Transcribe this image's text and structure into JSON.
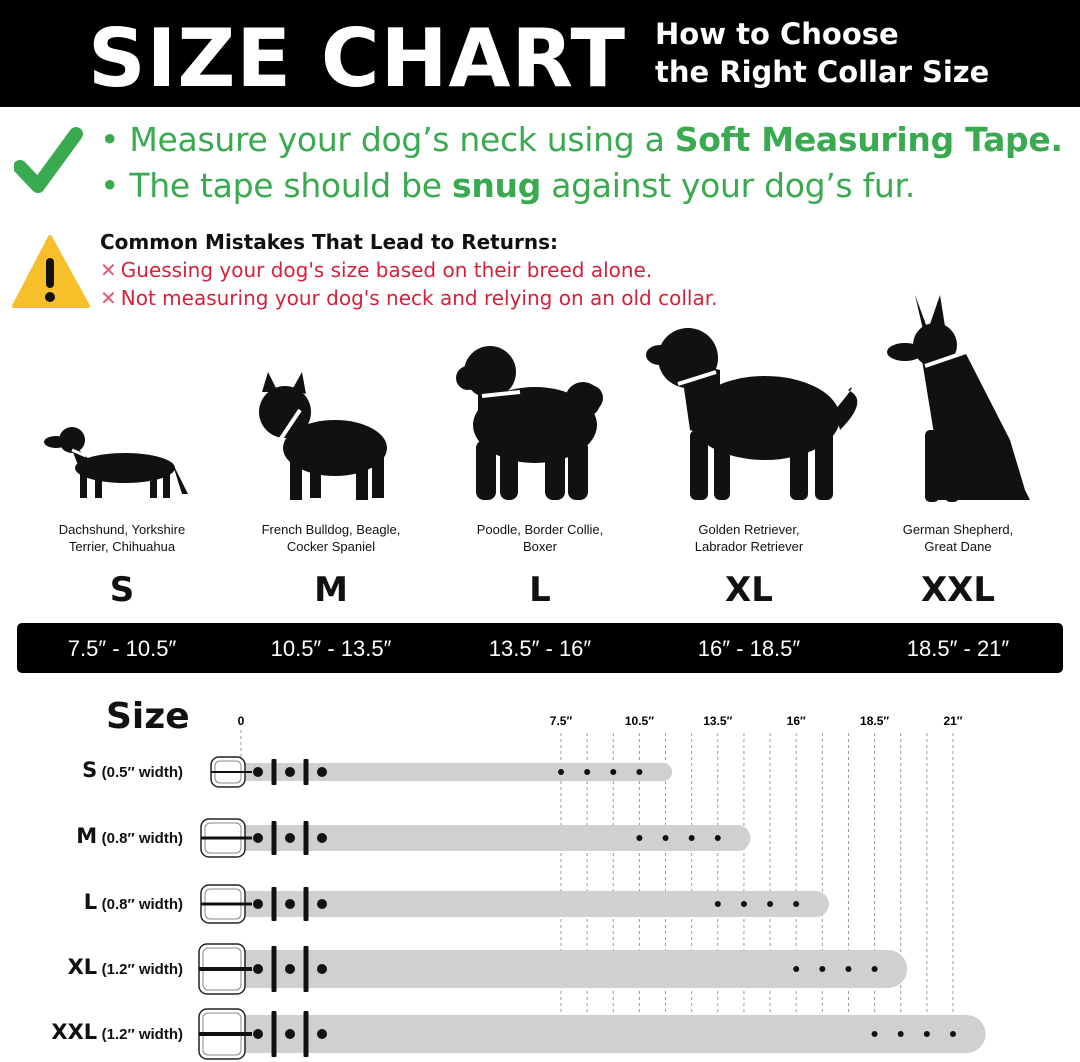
{
  "header": {
    "title": "SIZE CHART",
    "subtitle_line1": "How to Choose",
    "subtitle_line2": "the Right Collar Size"
  },
  "tips": [
    {
      "pre": "• Measure your dog’s neck using a ",
      "bold": "Soft Measuring Tape.",
      "post": ""
    },
    {
      "pre": "• The tape should be ",
      "bold": "snug",
      "post": " against your dog’s fur."
    }
  ],
  "mistakes": {
    "title": "Common Mistakes That Lead to Returns:",
    "x_glyph": "✕",
    "items": [
      "Guessing your dog's size based on their breed alone.",
      "Not measuring your dog's neck and relying on an old collar."
    ]
  },
  "icons": {
    "check": "check-icon",
    "warning": "warning-icon",
    "cross": "cross-icon"
  },
  "colors": {
    "green": "#3aaa50",
    "red": "#d8203a",
    "warning_yellow": "#f7c02a",
    "belt_gray": "#d0d0d0",
    "bar_black": "#000000"
  },
  "sizes": [
    {
      "size": "S",
      "breeds_line1": "Dachshund, Yorkshire",
      "breeds_line2": "Terrier, Chihuahua",
      "range_label": "7.5″ - 10.5″",
      "range": [
        7.5,
        10.5
      ],
      "width_label": "(0.5″ width)"
    },
    {
      "size": "M",
      "breeds_line1": "French Bulldog, Beagle,",
      "breeds_line2": "Cocker Spaniel",
      "range_label": "10.5″ - 13.5″",
      "range": [
        10.5,
        13.5
      ],
      "width_label": "(0.8″ width)"
    },
    {
      "size": "L",
      "breeds_line1": "Poodle, Border Collie,",
      "breeds_line2": "Boxer",
      "range_label": "13.5″ - 16″",
      "range": [
        13.5,
        16
      ],
      "width_label": "(0.8″ width)"
    },
    {
      "size": "XL",
      "breeds_line1": "Golden Retriever,",
      "breeds_line2": "Labrador Retriever",
      "range_label": "16″ - 18.5″",
      "range": [
        16,
        18.5
      ],
      "width_label": "(1.2″ width)"
    },
    {
      "size": "XXL",
      "breeds_line1": "German Shepherd,",
      "breeds_line2": "Great Dane",
      "range_label": "18.5″ - 21″",
      "range": [
        18.5,
        21
      ],
      "width_label": "(1.2″ width)"
    }
  ],
  "scale": {
    "heading": "Size",
    "zero_label": "0",
    "tick_values": [
      7.5,
      10.5,
      13.5,
      16,
      18.5,
      21
    ],
    "tick_labels": [
      "7.5″",
      "10.5″",
      "13.5″",
      "16″",
      "18.5″",
      "21″"
    ]
  }
}
